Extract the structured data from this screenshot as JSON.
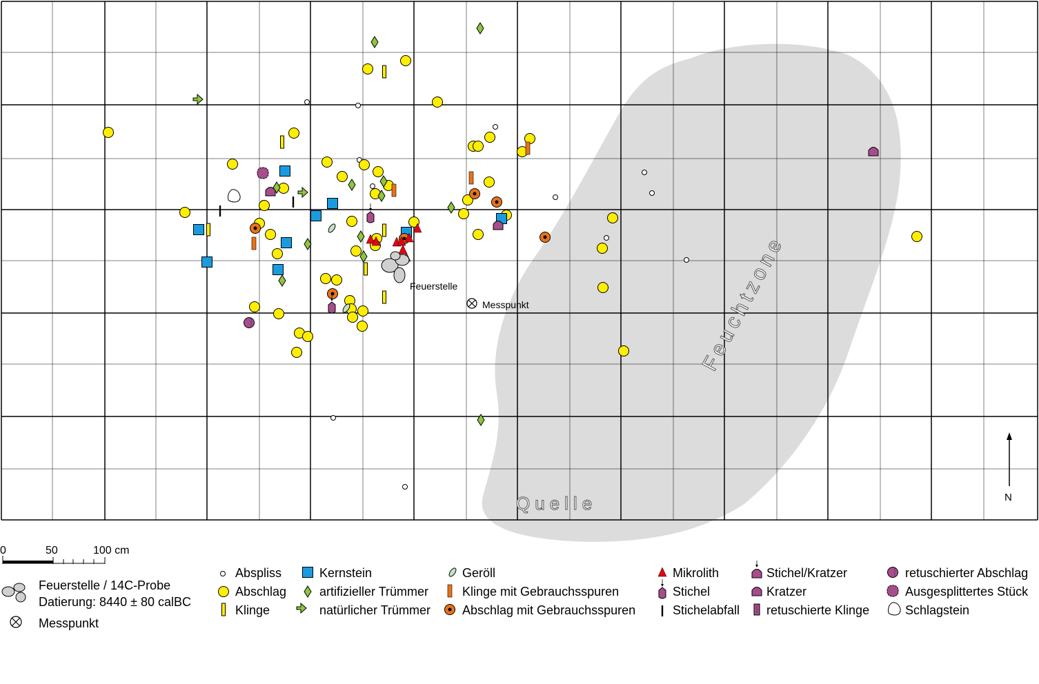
{
  "labels": {
    "feuerstelle": "Feuerstelle",
    "messpunkt": "Messpunkt",
    "feuchtzone": "Feuchtzone",
    "quelle": "Quelle",
    "north": "N"
  },
  "scale": {
    "t0": "0",
    "t50": "50",
    "t100": "100 cm"
  },
  "legend": {
    "feuerstelle_line1": "Feuerstelle / 14C-Probe",
    "feuerstelle_line2": "Datierung: 8440 ± 80 calBC",
    "messpunkt": "Messpunkt",
    "items": {
      "abspliss": "Abspliss",
      "abschlag": "Abschlag",
      "klinge": "Klinge",
      "kernstein": "Kernstein",
      "art_truemmer": "artifizieller Trümmer",
      "nat_truemmer": "natürlicher Trümmer",
      "geroell": "Geröll",
      "klinge_gebrauch": "Klinge mit Gebrauchsspuren",
      "abschlag_gebrauch": "Abschlag mit Gebrauchsspuren",
      "mikrolith": "Mikrolith",
      "stichel": "Stichel",
      "stichelabfall": "Stichelabfall",
      "stichel_kratzer": "Stichel/Kratzer",
      "kratzer": "Kratzer",
      "retusch_klinge": "retuschierte Klinge",
      "retusch_abschlag": "retuschierter Abschlag",
      "ausgesplittert": "Ausgesplittertes Stück",
      "schlagstein": "Schlagstein"
    }
  },
  "colors": {
    "abschlag": "#ffee00",
    "kernstein": "#1a9be0",
    "truemmer": "#8dc63f",
    "gebrauch": "#e8731a",
    "mikrolith": "#e30613",
    "stichel": "#a64d8c",
    "feuchtzone": "#dcdcdc"
  }
}
